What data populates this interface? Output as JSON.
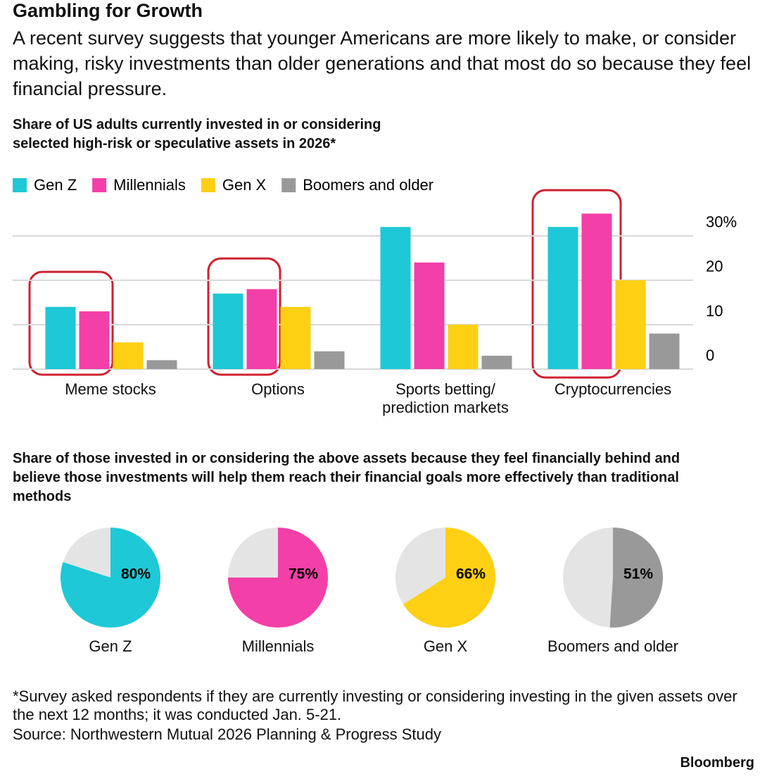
{
  "header": {
    "title": "Gambling for Growth",
    "subtitle": "A recent survey suggests that younger Americans are more likely to make, or consider making, risky investments than older generations and that most do so because they feel financial pressure."
  },
  "chart_data": [
    {
      "type": "bar",
      "title": "Share of US adults currently invested in or considering selected high-risk or speculative assets in 2026*",
      "categories": [
        "Meme stocks",
        "Options",
        "Sports betting/ prediction markets",
        "Cryptocurrencies"
      ],
      "series": [
        {
          "name": "Gen Z",
          "color": "#1ec8d6",
          "values": [
            14,
            17,
            32,
            32
          ]
        },
        {
          "name": "Millennials",
          "color": "#f33fa8",
          "values": [
            13,
            18,
            24,
            35
          ]
        },
        {
          "name": "Gen X",
          "color": "#fdd014",
          "values": [
            6,
            14,
            10,
            20
          ]
        },
        {
          "name": "Boomers and older",
          "color": "#999999",
          "values": [
            2,
            4,
            3,
            8
          ]
        }
      ],
      "ylim": [
        0,
        36
      ],
      "yticks": [
        0,
        10,
        20,
        {
          "value": 30,
          "label": "30%"
        }
      ],
      "grid": true
    },
    {
      "type": "pie",
      "title": "Share of those invested in or considering the above assets because they feel financially behind and believe those investments will help them reach their financial goals more effectively than traditional methods",
      "categories": [
        "Gen Z",
        "Millennials",
        "Gen X",
        "Boomers and older"
      ],
      "values": [
        80,
        75,
        66,
        51
      ],
      "value_labels": [
        "80%",
        "75%",
        "66%",
        "51%"
      ],
      "colors": [
        "#1ec8d6",
        "#f33fa8",
        "#fdd014",
        "#999999"
      ],
      "rest_color": "#e4e4e4"
    }
  ],
  "footer": {
    "note": "*Survey asked respondents if they are currently investing or considering investing in the given assets over the next 12 months; it was conducted Jan. 5-21.",
    "source": "Source: Northwestern Mutual 2026 Planning & Progress Study",
    "brand": "Bloomberg"
  }
}
